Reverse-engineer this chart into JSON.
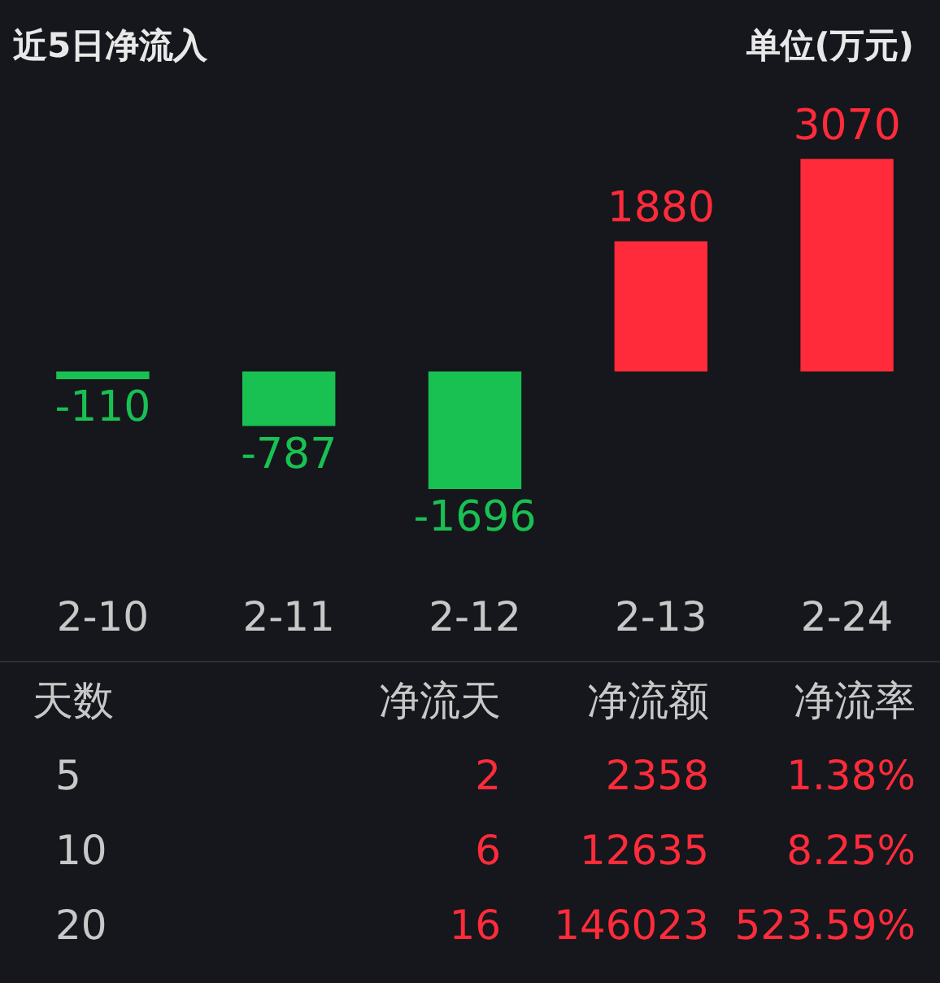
{
  "chart_data": [
    {
      "type": "bar",
      "title": "近5日净流入",
      "subtitle": "单位(万元)",
      "categories": [
        "2-10",
        "2-11",
        "2-12",
        "2-13",
        "2-24"
      ],
      "values": [
        -110,
        -787,
        -1696,
        1880,
        3070
      ],
      "colors": [
        "#19c052",
        "#19c052",
        "#19c052",
        "#ff2b3a",
        "#ff2b3a"
      ],
      "data_labels": true
    },
    {
      "type": "other",
      "categories": [
        "天数",
        "净流天",
        "净流额",
        "净流率"
      ],
      "annotations": [
        "5",
        "2",
        "2358",
        "1.38%",
        "10",
        "6",
        "12635",
        "8.25%",
        "20",
        "16",
        "146023",
        "523.59%"
      ]
    }
  ]
}
